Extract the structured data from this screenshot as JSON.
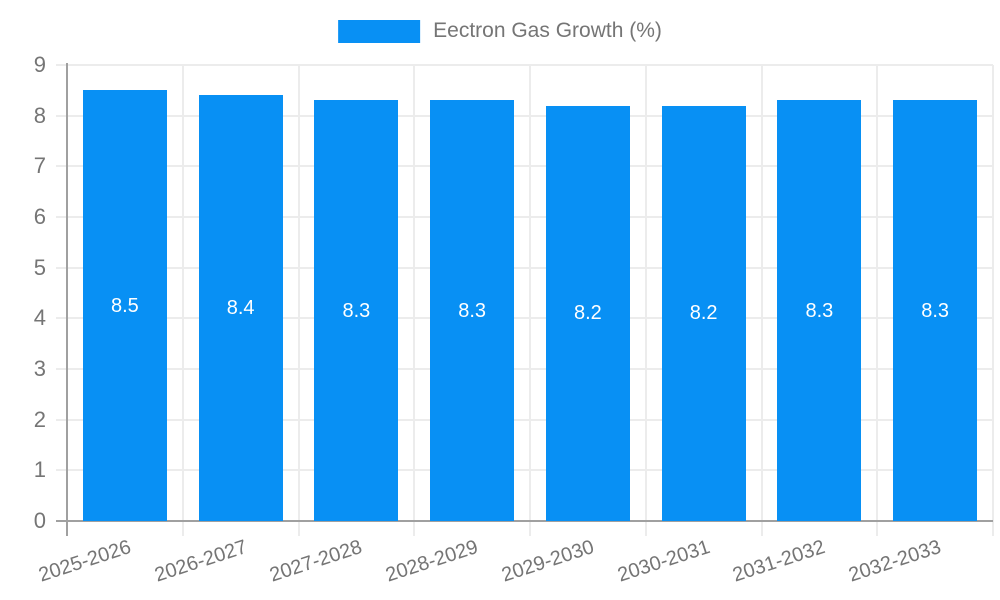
{
  "legend": {
    "label": "Eectron Gas Growth (%)"
  },
  "chart_data": {
    "type": "bar",
    "title": "",
    "series_name": "Eectron Gas Growth (%)",
    "categories": [
      "2025-2026",
      "2026-2027",
      "2027-2028",
      "2028-2029",
      "2029-2030",
      "2030-2031",
      "2031-2032",
      "2032-2033"
    ],
    "values": [
      8.5,
      8.4,
      8.3,
      8.3,
      8.2,
      8.2,
      8.3,
      8.3
    ],
    "value_labels": [
      "8.5",
      "8.4",
      "8.3",
      "8.3",
      "8.2",
      "8.2",
      "8.3",
      "8.3"
    ],
    "xlabel": "",
    "ylabel": "",
    "ylim": [
      0,
      9
    ],
    "yticks": [
      0,
      1,
      2,
      3,
      4,
      5,
      6,
      7,
      8,
      9
    ],
    "grid": true,
    "legend_position": "top-center",
    "colors": {
      "bar": "#0890F4",
      "value_label": "#FFFFFF",
      "axis": "#A0A0A0",
      "gridline": "#ECECEC",
      "tick_label": "#757575",
      "legend_label": "#757575",
      "background": "#FFFFFF"
    }
  }
}
